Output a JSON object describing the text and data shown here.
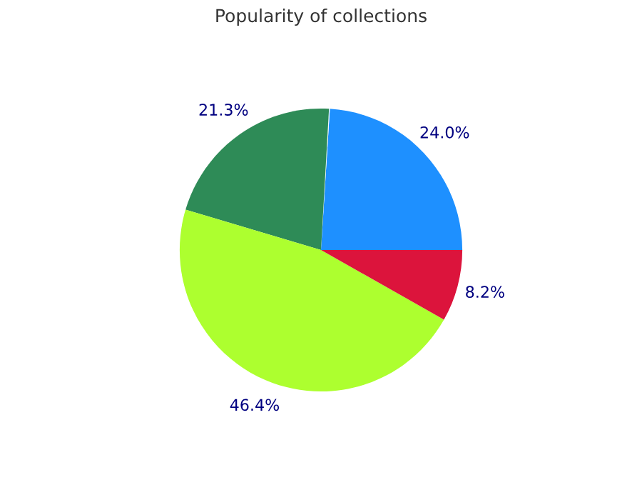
{
  "chart_data": {
    "type": "pie",
    "title": "Popularity of collections",
    "categories": [
      null,
      null,
      null,
      null,
      null
    ],
    "values": [
      24.0,
      0.1,
      21.3,
      46.4,
      8.2
    ],
    "colors": [
      "#1e90ff",
      "#f0f8ff",
      "#2e8b57",
      "#adff2f",
      "#dc143c"
    ],
    "value_labels": [
      "24.0%",
      null,
      "21.3%",
      "46.4%",
      "8.2%"
    ],
    "legend": false
  }
}
